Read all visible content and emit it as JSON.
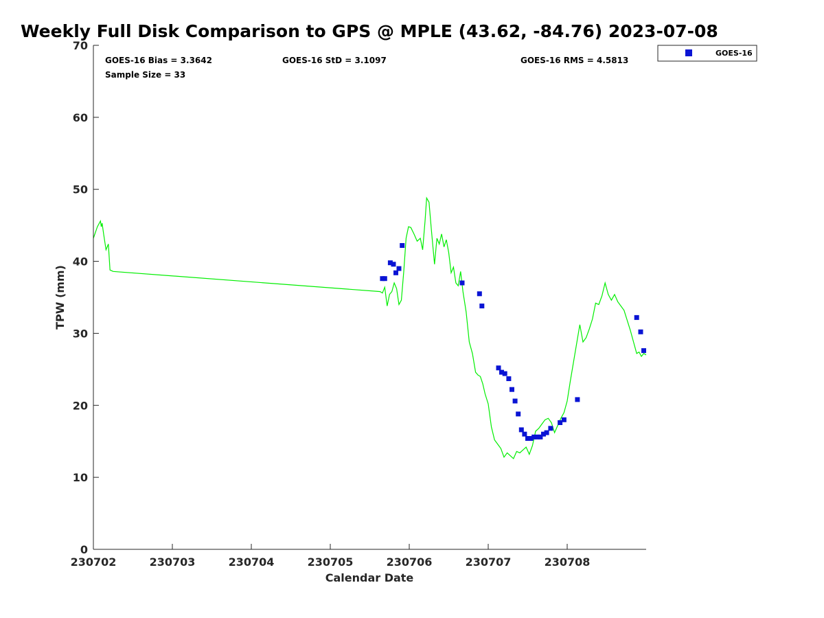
{
  "chart_data": {
    "type": "scatter",
    "title": "Weekly Full Disk Comparison to GPS @ MPLE (43.62, -84.76) 2023-07-08",
    "xlabel": "Calendar Date",
    "ylabel": "TPW (mm)",
    "xlim": [
      0,
      7
    ],
    "ylim": [
      0,
      70
    ],
    "x_ticks": [
      {
        "v": 0,
        "label": "230702"
      },
      {
        "v": 1,
        "label": "230703"
      },
      {
        "v": 2,
        "label": "230704"
      },
      {
        "v": 3,
        "label": "230705"
      },
      {
        "v": 4,
        "label": "230706"
      },
      {
        "v": 5,
        "label": "230707"
      },
      {
        "v": 6,
        "label": "230708"
      }
    ],
    "y_ticks": [
      {
        "v": 0,
        "label": "0"
      },
      {
        "v": 10,
        "label": "10"
      },
      {
        "v": 20,
        "label": "20"
      },
      {
        "v": 30,
        "label": "30"
      },
      {
        "v": 40,
        "label": "40"
      },
      {
        "v": 50,
        "label": "50"
      },
      {
        "v": 60,
        "label": "60"
      },
      {
        "v": 70,
        "label": "70"
      }
    ],
    "stats": {
      "bias": "GOES-16 Bias = 3.3642",
      "std": "GOES-16 StD = 3.1097",
      "rms": "GOES-16 RMS = 4.5813",
      "sample": "Sample Size = 33"
    },
    "legend": {
      "placement": "top-right, outside plot",
      "label": "GOES-16"
    },
    "colors": {
      "gps_line": "#00ee00",
      "goes_marker": "#0a14d4",
      "axes": "#262626"
    },
    "gps_line": {
      "x": [
        0,
        0.05,
        0.09,
        0.1,
        0.11,
        0.13,
        0.16,
        0.19,
        0.21,
        0.25,
        3.63,
        3.66,
        3.69,
        3.72,
        3.75,
        3.78,
        3.81,
        3.84,
        3.87,
        3.9,
        3.93,
        3.96,
        3.99,
        4.02,
        4.06,
        4.1,
        4.14,
        4.17,
        4.2,
        4.22,
        4.25,
        4.28,
        4.32,
        4.35,
        4.38,
        4.41,
        4.44,
        4.47,
        4.5,
        4.53,
        4.56,
        4.59,
        4.62,
        4.65,
        4.68,
        4.72,
        4.76,
        4.8,
        4.84,
        4.87,
        4.9,
        4.93,
        4.96,
        5.0,
        5.04,
        5.08,
        5.12,
        5.16,
        5.2,
        5.24,
        5.28,
        5.32,
        5.36,
        5.4,
        5.44,
        5.48,
        5.52,
        5.56,
        5.6,
        5.64,
        5.68,
        5.72,
        5.76,
        5.8,
        5.84,
        5.88,
        5.92,
        5.96,
        6.0,
        6.04,
        6.08,
        6.12,
        6.16,
        6.2,
        6.24,
        6.28,
        6.32,
        6.36,
        6.4,
        6.44,
        6.48,
        6.52,
        6.56,
        6.6,
        6.64,
        6.68,
        6.72,
        6.76,
        6.8,
        6.84,
        6.88,
        6.91,
        6.94,
        6.97,
        7.0
      ],
      "y": [
        43.2,
        44.8,
        45.6,
        44.8,
        45.3,
        43.8,
        41.6,
        42.4,
        38.8,
        38.6,
        35.8,
        35.6,
        36.4,
        33.8,
        35.4,
        35.8,
        37.0,
        36.2,
        34.0,
        34.6,
        38.6,
        43.2,
        44.8,
        44.7,
        43.8,
        42.8,
        43.2,
        41.6,
        45.6,
        48.8,
        48.2,
        44.4,
        39.6,
        43.2,
        42.4,
        43.8,
        42.0,
        43.0,
        41.2,
        38.4,
        39.2,
        37.0,
        36.6,
        38.6,
        35.8,
        33.0,
        28.8,
        27.2,
        24.6,
        24.2,
        24.0,
        23.0,
        21.6,
        20.2,
        17.0,
        15.2,
        14.6,
        14.0,
        12.8,
        13.4,
        13.0,
        12.6,
        13.6,
        13.4,
        13.8,
        14.2,
        13.2,
        14.4,
        16.4,
        16.8,
        17.4,
        18.0,
        18.2,
        17.6,
        16.2,
        17.2,
        18.2,
        19.0,
        20.6,
        23.4,
        26.0,
        28.6,
        31.2,
        28.8,
        29.4,
        30.6,
        32.0,
        34.2,
        34.0,
        35.2,
        37.0,
        35.4,
        34.6,
        35.4,
        34.4,
        33.8,
        33.2,
        31.8,
        30.4,
        28.8,
        27.2,
        27.4,
        26.8,
        27.2,
        27.0
      ]
    },
    "series": [
      {
        "name": "GOES-16",
        "x": [
          3.66,
          3.69,
          3.76,
          3.8,
          3.83,
          3.87,
          3.91,
          4.67,
          4.89,
          4.92,
          5.13,
          5.17,
          5.21,
          5.26,
          5.3,
          5.34,
          5.38,
          5.42,
          5.46,
          5.5,
          5.54,
          5.58,
          5.62,
          5.66,
          5.7,
          5.74,
          5.79,
          5.91,
          5.96,
          6.13,
          6.88,
          6.93,
          6.97
        ],
        "y": [
          37.6,
          37.6,
          39.8,
          39.6,
          38.4,
          39.0,
          42.2,
          37.0,
          35.5,
          33.8,
          25.2,
          24.6,
          24.4,
          23.7,
          22.2,
          20.6,
          18.8,
          16.6,
          16.0,
          15.4,
          15.4,
          15.6,
          15.6,
          15.6,
          16.0,
          16.2,
          16.8,
          17.6,
          18.0,
          20.8,
          32.2,
          30.2,
          27.6
        ]
      }
    ]
  }
}
